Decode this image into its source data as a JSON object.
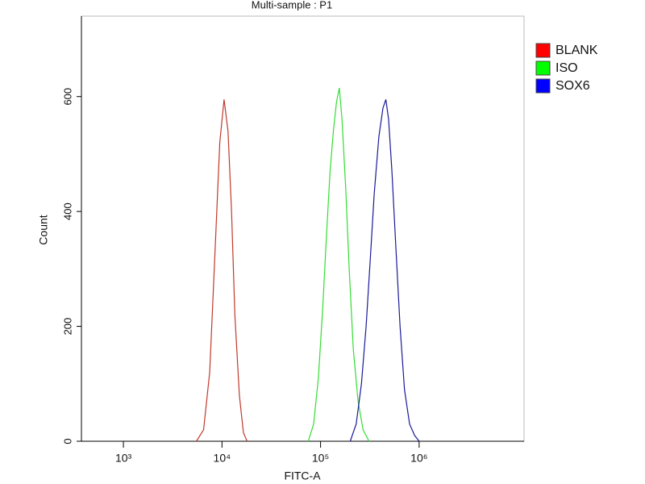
{
  "chart_data": {
    "type": "line",
    "title": "Multi-sample : P1",
    "x_label": "FITC-A",
    "y_label": "Count",
    "xscale": "log",
    "xlim": [
      375,
      11600000
    ],
    "xticks": [
      {
        "value": 1000,
        "label": "10³"
      },
      {
        "value": 10000,
        "label": "10⁴"
      },
      {
        "value": 100000,
        "label": "10⁵"
      },
      {
        "value": 1000000,
        "label": "10⁶"
      }
    ],
    "ylim": [
      0,
      740
    ],
    "yticks": [
      0,
      200,
      400,
      600
    ],
    "grid": false,
    "legend": "right",
    "series": [
      {
        "name": "BLANK",
        "color": "#c0392b",
        "legend_color": "#ff0000",
        "x": [
          5500,
          6500,
          7500,
          8500,
          9500,
          10500,
          11500,
          12500,
          13500,
          15000,
          16500,
          18000
        ],
        "values": [
          0,
          20,
          120,
          330,
          520,
          595,
          540,
          400,
          220,
          80,
          15,
          0
        ]
      },
      {
        "name": "ISO",
        "color": "#33dd33",
        "legend_color": "#00ff00",
        "x": [
          75000,
          85000,
          95000,
          105000,
          115000,
          125000,
          135000,
          145000,
          155000,
          165000,
          180000,
          195000,
          215000,
          240000,
          270000,
          310000
        ],
        "values": [
          0,
          30,
          110,
          230,
          360,
          470,
          540,
          590,
          615,
          560,
          440,
          300,
          160,
          70,
          20,
          0
        ]
      },
      {
        "name": "SOX6",
        "color": "#1a1a99",
        "legend_color": "#0000ff",
        "x": [
          200000,
          230000,
          260000,
          290000,
          320000,
          350000,
          390000,
          430000,
          460000,
          490000,
          530000,
          580000,
          640000,
          710000,
          800000,
          900000,
          1000000
        ],
        "values": [
          0,
          30,
          100,
          200,
          320,
          430,
          530,
          580,
          595,
          560,
          470,
          340,
          200,
          90,
          30,
          10,
          0
        ]
      }
    ]
  }
}
